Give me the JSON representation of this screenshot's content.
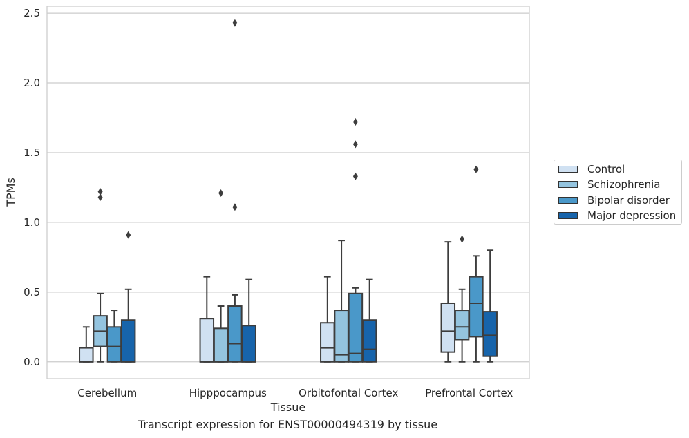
{
  "chart_data": {
    "type": "box",
    "title": "Transcript expression for ENST00000494319 by tissue",
    "xlabel": "Tissue",
    "ylabel": "TPMs",
    "ylim": [
      -0.12,
      2.55
    ],
    "yticks": [
      "0.0",
      "0.5",
      "1.0",
      "1.5",
      "2.0",
      "2.5"
    ],
    "ytick_values": [
      0,
      0.5,
      1.0,
      1.5,
      2.0,
      2.5
    ],
    "categories": [
      "Cerebellum",
      "Hipppocampus",
      "Orbitofontal Cortex",
      "Prefrontal Cortex"
    ],
    "grid": "horizontal",
    "legend_placement": "right",
    "series": [
      {
        "name": "Control",
        "color": "#d0e1f2",
        "boxes": [
          {
            "whislo": 0,
            "q1": 0,
            "med": 0,
            "q3": 0.1,
            "whishi": 0.25,
            "fliers": []
          },
          {
            "whislo": 0,
            "q1": 0,
            "med": 0,
            "q3": 0.31,
            "whishi": 0.61,
            "fliers": []
          },
          {
            "whislo": 0,
            "q1": 0,
            "med": 0.1,
            "q3": 0.28,
            "whishi": 0.61,
            "fliers": []
          },
          {
            "whislo": 0,
            "q1": 0.07,
            "med": 0.22,
            "q3": 0.42,
            "whishi": 0.86,
            "fliers": []
          }
        ]
      },
      {
        "name": "Schizophrenia",
        "color": "#94c4df",
        "boxes": [
          {
            "whislo": 0,
            "q1": 0.11,
            "med": 0.22,
            "q3": 0.33,
            "whishi": 0.49,
            "fliers": [
              1.18,
              1.22
            ]
          },
          {
            "whislo": 0,
            "q1": 0,
            "med": 0,
            "q3": 0.24,
            "whishi": 0.4,
            "fliers": [
              1.21
            ]
          },
          {
            "whislo": 0,
            "q1": 0,
            "med": 0.05,
            "q3": 0.37,
            "whishi": 0.87,
            "fliers": []
          },
          {
            "whislo": 0,
            "q1": 0.16,
            "med": 0.25,
            "q3": 0.37,
            "whishi": 0.52,
            "fliers": [
              0.88
            ]
          }
        ]
      },
      {
        "name": "Bipolar disorder",
        "color": "#4a98c9",
        "boxes": [
          {
            "whislo": 0,
            "q1": 0,
            "med": 0.11,
            "q3": 0.25,
            "whishi": 0.37,
            "fliers": []
          },
          {
            "whislo": 0,
            "q1": 0,
            "med": 0.13,
            "q3": 0.4,
            "whishi": 0.48,
            "fliers": [
              1.11,
              2.43
            ]
          },
          {
            "whislo": 0,
            "q1": 0,
            "med": 0.06,
            "q3": 0.49,
            "whishi": 0.53,
            "fliers": [
              1.33,
              1.56,
              1.72
            ]
          },
          {
            "whislo": 0,
            "q1": 0.18,
            "med": 0.42,
            "q3": 0.61,
            "whishi": 0.76,
            "fliers": [
              1.38
            ]
          }
        ]
      },
      {
        "name": "Major depression",
        "color": "#1764ab",
        "boxes": [
          {
            "whislo": 0,
            "q1": 0,
            "med": 0,
            "q3": 0.3,
            "whishi": 0.52,
            "fliers": [
              0.91
            ]
          },
          {
            "whislo": 0,
            "q1": 0,
            "med": 0,
            "q3": 0.26,
            "whishi": 0.59,
            "fliers": []
          },
          {
            "whislo": 0,
            "q1": 0,
            "med": 0.09,
            "q3": 0.3,
            "whishi": 0.59,
            "fliers": []
          },
          {
            "whislo": 0,
            "q1": 0.04,
            "med": 0.19,
            "q3": 0.36,
            "whishi": 0.8,
            "fliers": []
          }
        ]
      }
    ]
  }
}
